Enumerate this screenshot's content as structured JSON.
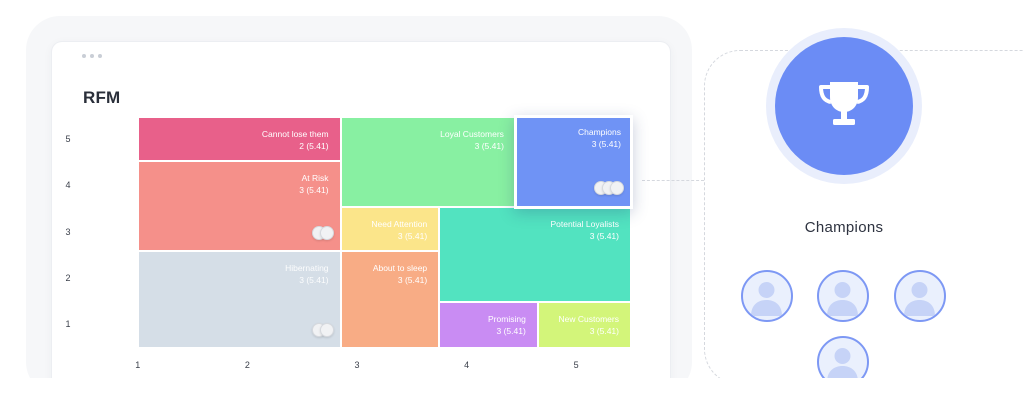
{
  "chart_data": {
    "type": "heatmap",
    "title": "RFM",
    "x_ticks": [
      "1",
      "2",
      "3",
      "4",
      "5"
    ],
    "y_ticks": [
      "5",
      "4",
      "3",
      "2",
      "1"
    ],
    "segments": [
      {
        "name": "Cannot lose them",
        "value": "2 (5.41)",
        "color": "#e8608a",
        "x_range": [
          1,
          2.85
        ],
        "y_range": [
          4.55,
          5.5
        ]
      },
      {
        "name": "At Risk",
        "value": "3 (5.41)",
        "color": "#f5908a",
        "x_range": [
          1,
          2.85
        ],
        "y_range": [
          2.6,
          4.55
        ]
      },
      {
        "name": "Hibernating",
        "value": "3 (5.41)",
        "color": "#d5dee7",
        "x_range": [
          1,
          2.85
        ],
        "y_range": [
          0.5,
          2.6
        ]
      },
      {
        "name": "Loyal Customers",
        "value": "3 (5.41)",
        "color": "#88f0a2",
        "x_range": [
          2.85,
          4.45
        ],
        "y_range": [
          3.55,
          5.5
        ]
      },
      {
        "name": "Champions",
        "value": "3 (5.41)",
        "color": "#6f93f5",
        "x_range": [
          4.45,
          5.5
        ],
        "y_range": [
          3.55,
          5.5
        ]
      },
      {
        "name": "Need Attention",
        "value": "3 (5.41)",
        "color": "#fbe58a",
        "x_range": [
          2.85,
          3.75
        ],
        "y_range": [
          2.6,
          3.55
        ]
      },
      {
        "name": "Potential Loyalists",
        "value": "3 (5.41)",
        "color": "#52e3c0",
        "x_range": [
          3.75,
          5.5
        ],
        "y_range": [
          1.5,
          3.55
        ]
      },
      {
        "name": "About to sleep",
        "value": "3 (5.41)",
        "color": "#f8ac85",
        "x_range": [
          2.85,
          3.75
        ],
        "y_range": [
          0.5,
          2.6
        ]
      },
      {
        "name": "Promising",
        "value": "3 (5.41)",
        "color": "#c98cf3",
        "x_range": [
          3.75,
          4.65
        ],
        "y_range": [
          0.5,
          1.5
        ]
      },
      {
        "name": "New Customers",
        "value": "3 (5.41)",
        "color": "#d3f57a",
        "x_range": [
          4.65,
          5.5
        ],
        "y_range": [
          0.5,
          1.5
        ]
      }
    ],
    "xlim": [
      0.5,
      5.5
    ],
    "ylim": [
      0.5,
      5.5
    ],
    "grid": false,
    "highlighted": "Champions"
  },
  "side_panel": {
    "label": "Champions",
    "icon": "trophy-icon",
    "accent": "#6b8cf5",
    "members": [
      "user-avatar-icon",
      "user-avatar-icon",
      "user-avatar-icon",
      "user-avatar-icon"
    ]
  }
}
